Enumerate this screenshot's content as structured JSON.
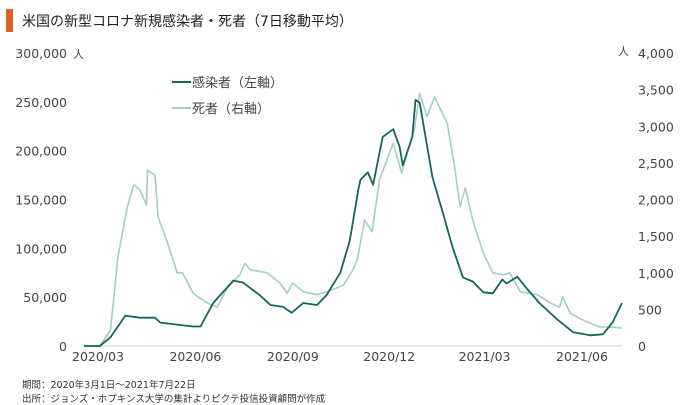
{
  "title": "米国の新型コロナ新規感染者・死者（7日移動平均）",
  "accent_color": "#d9622b",
  "notes": {
    "period": "期間：2020年3月1日～2021年7月22日",
    "source": "出所：ジョンズ・ホプキンス大学の集計よりピクテ投信投資顧問が作成"
  },
  "chart_data": {
    "type": "line",
    "title": "米国の新型コロナ新規感染者・死者（7日移動平均）",
    "x_unit": "days since 2020-03-01",
    "x_range": [
      0,
      508
    ],
    "x_ticks": [
      {
        "label": "2020/03",
        "day": 0
      },
      {
        "label": "2020/06",
        "day": 92
      },
      {
        "label": "2020/09",
        "day": 184
      },
      {
        "label": "2020/12",
        "day": 275
      },
      {
        "label": "2021/03",
        "day": 365
      },
      {
        "label": "2021/06",
        "day": 457
      }
    ],
    "y_left": {
      "unit": "人",
      "range": [
        0,
        300000
      ],
      "ticks": [
        "0",
        "50,000",
        "100,000",
        "150,000",
        "200,000",
        "250,000",
        "300,000"
      ]
    },
    "y_right": {
      "unit": "人",
      "range": [
        0,
        4000
      ],
      "ticks": [
        "0",
        "500",
        "1,000",
        "1,500",
        "2,000",
        "2,500",
        "3,000",
        "3,500",
        "4,000"
      ]
    },
    "grid": false,
    "legend_position": "top-left",
    "series": [
      {
        "name": "感染者（左軸）",
        "axis": "left",
        "color": "#12665e",
        "points": [
          [
            0,
            0
          ],
          [
            15,
            0
          ],
          [
            25,
            9000
          ],
          [
            39,
            31000
          ],
          [
            53,
            29000
          ],
          [
            67,
            29000
          ],
          [
            72,
            24000
          ],
          [
            103,
            20000
          ],
          [
            110,
            20000
          ],
          [
            122,
            44000
          ],
          [
            141,
            67000
          ],
          [
            150,
            65000
          ],
          [
            166,
            52000
          ],
          [
            176,
            42000
          ],
          [
            188,
            40000
          ],
          [
            196,
            34000
          ],
          [
            207,
            44000
          ],
          [
            220,
            42000
          ],
          [
            229,
            52000
          ],
          [
            242,
            75000
          ],
          [
            251,
            108000
          ],
          [
            259,
            160000
          ],
          [
            261,
            170000
          ],
          [
            268,
            178000
          ],
          [
            273,
            165000
          ],
          [
            282,
            214000
          ],
          [
            292,
            222000
          ],
          [
            298,
            204000
          ],
          [
            301,
            185000
          ],
          [
            310,
            214000
          ],
          [
            313,
            252000
          ],
          [
            317,
            249000
          ],
          [
            329,
            173000
          ],
          [
            339,
            136000
          ],
          [
            348,
            101000
          ],
          [
            358,
            70000
          ],
          [
            367,
            66000
          ],
          [
            377,
            55000
          ],
          [
            386,
            54000
          ],
          [
            395,
            68000
          ],
          [
            399,
            64000
          ],
          [
            409,
            71000
          ],
          [
            418,
            59000
          ],
          [
            430,
            44000
          ],
          [
            447,
            27000
          ],
          [
            462,
            14000
          ],
          [
            478,
            11000
          ],
          [
            490,
            12000
          ],
          [
            499,
            24000
          ],
          [
            508,
            44000
          ]
        ]
      },
      {
        "name": "死者（右軸）",
        "axis": "right",
        "color": "#a6cdc8",
        "points": [
          [
            0,
            0
          ],
          [
            15,
            0
          ],
          [
            25,
            218
          ],
          [
            32,
            1215
          ],
          [
            41,
            1900
          ],
          [
            47,
            2200
          ],
          [
            53,
            2130
          ],
          [
            59,
            1925
          ],
          [
            60,
            2400
          ],
          [
            67,
            2330
          ],
          [
            70,
            1760
          ],
          [
            78,
            1450
          ],
          [
            88,
            1000
          ],
          [
            93,
            1000
          ],
          [
            103,
            720
          ],
          [
            116,
            590
          ],
          [
            126,
            530
          ],
          [
            135,
            790
          ],
          [
            147,
            970
          ],
          [
            152,
            1130
          ],
          [
            157,
            1040
          ],
          [
            173,
            1000
          ],
          [
            185,
            860
          ],
          [
            192,
            720
          ],
          [
            197,
            860
          ],
          [
            207,
            740
          ],
          [
            220,
            700
          ],
          [
            229,
            740
          ],
          [
            245,
            830
          ],
          [
            254,
            1040
          ],
          [
            258,
            1170
          ],
          [
            265,
            1720
          ],
          [
            272,
            1560
          ],
          [
            279,
            2270
          ],
          [
            292,
            2770
          ],
          [
            300,
            2360
          ],
          [
            306,
            2680
          ],
          [
            312,
            2950
          ],
          [
            317,
            3450
          ],
          [
            324,
            3130
          ],
          [
            331,
            3400
          ],
          [
            343,
            3040
          ],
          [
            350,
            2440
          ],
          [
            355,
            1900
          ],
          [
            360,
            2160
          ],
          [
            367,
            1720
          ],
          [
            377,
            1270
          ],
          [
            386,
            1000
          ],
          [
            396,
            970
          ],
          [
            402,
            1000
          ],
          [
            412,
            740
          ],
          [
            428,
            700
          ],
          [
            440,
            590
          ],
          [
            449,
            530
          ],
          [
            452,
            670
          ],
          [
            459,
            450
          ],
          [
            471,
            355
          ],
          [
            487,
            260
          ],
          [
            497,
            260
          ],
          [
            508,
            245
          ]
        ]
      }
    ]
  }
}
